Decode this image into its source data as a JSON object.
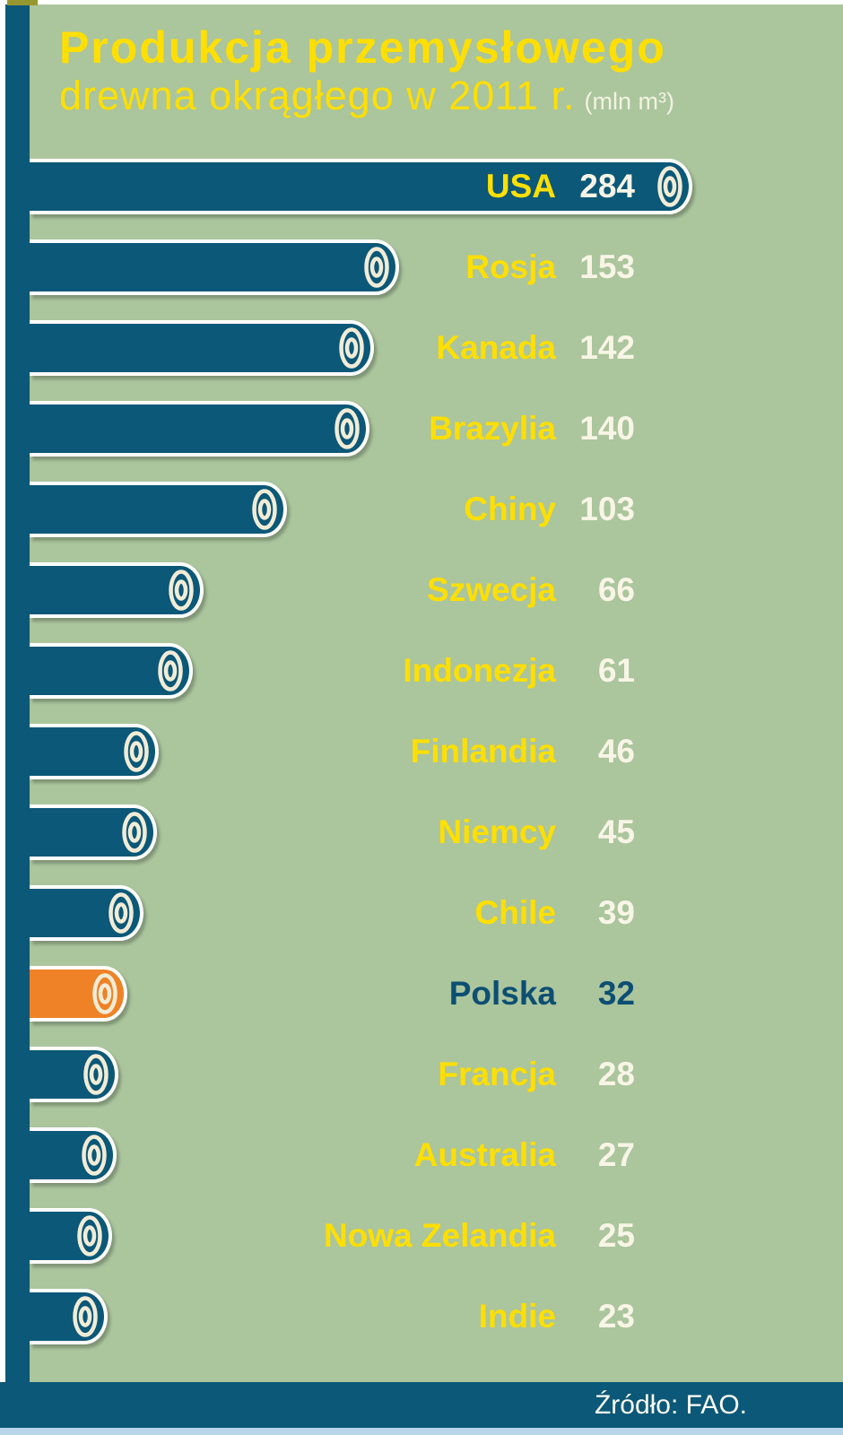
{
  "title": {
    "line1": "Produkcja przemysłowego",
    "line2": "drewna okrągłego w 2011 r.",
    "unit": "(mln m³)"
  },
  "footer": {
    "source": "Źródło: FAO."
  },
  "chart_data": {
    "type": "bar",
    "orientation": "horizontal",
    "title": "Produkcja przemysłowego drewna okrągłego w 2011 r.",
    "unit": "mln m³",
    "categories": [
      "USA",
      "Rosja",
      "Kanada",
      "Brazylia",
      "Chiny",
      "Szwecja",
      "Indonezja",
      "Finlandia",
      "Niemcy",
      "Chile",
      "Polska",
      "Francja",
      "Australia",
      "Nowa Zelandia",
      "Indie"
    ],
    "values": [
      284,
      153,
      142,
      140,
      103,
      66,
      61,
      46,
      45,
      39,
      32,
      28,
      27,
      25,
      23
    ],
    "highlight_category": "Polska",
    "value_labels_shown": true,
    "gridlines": false,
    "source": "Źródło: FAO."
  },
  "colors": {
    "background_green": "#abc59d",
    "bar_teal": "#0b5878",
    "highlight_orange": "#ef8226",
    "label_yellow": "#ffdf00",
    "value_cream": "#f8f5e6",
    "highlight_text_navy": "#0d4f72",
    "bottom_strip_blue": "#b9d5e9",
    "ring_cream": "#f2ecd6"
  }
}
